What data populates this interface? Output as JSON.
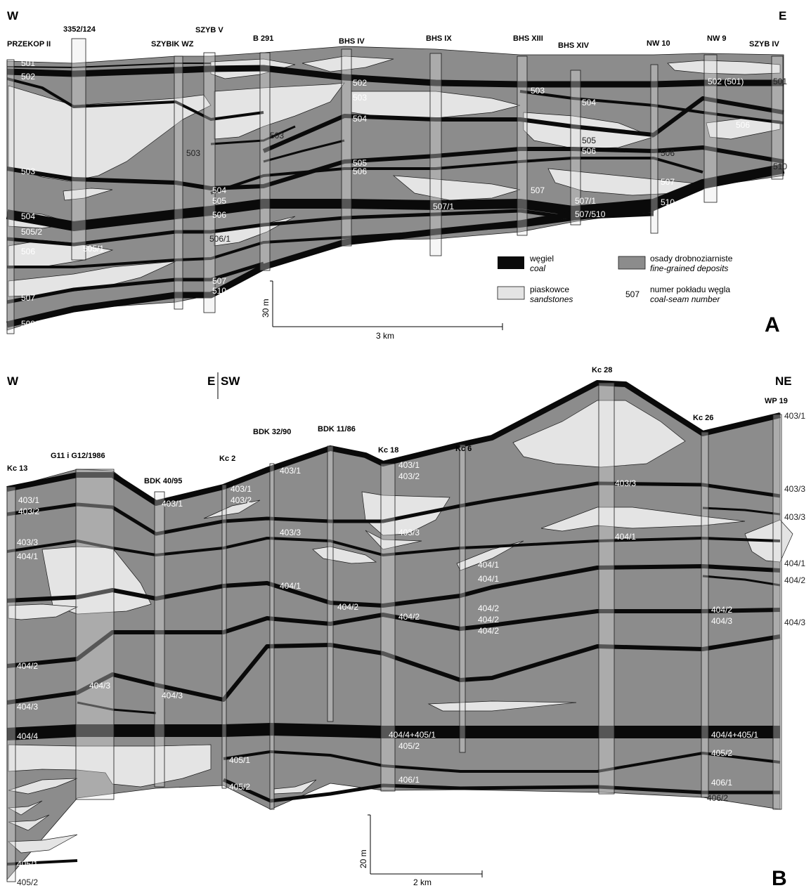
{
  "palette": {
    "coal": "#0a0a0a",
    "fine": "#8c8c8c",
    "sand": "#e4e4e4",
    "line": "#1a1a1a"
  },
  "panelA": {
    "letter": "A",
    "west": "W",
    "east": "E",
    "wells": [
      "PRZEKOP II",
      "3352/124",
      "SZYBIK WZ",
      "SZYB V",
      "B 291",
      "BHS IV",
      "BHS IX",
      "BHS XIII",
      "BHS XIV",
      "NW 10",
      "NW 9",
      "SZYB IV"
    ],
    "seam_labels": [
      "501",
      "502",
      "503",
      "504",
      "505/2",
      "506",
      "507",
      "509/510",
      "505/1",
      "503",
      "504",
      "505",
      "506",
      "506/1",
      "507",
      "510",
      "502",
      "503",
      "504",
      "505",
      "506",
      "507/1",
      "503",
      "504",
      "505",
      "506",
      "507",
      "507/1",
      "507/510",
      "506",
      "507",
      "510",
      "502 (501)",
      "506",
      "501",
      "510",
      "503"
    ],
    "legend": {
      "coal": {
        "pl": "węgiel",
        "en": "coal"
      },
      "fine": {
        "pl": "osady drobnoziarniste",
        "en": "fine-grained deposits"
      },
      "sand": {
        "pl": "piaskowce",
        "en": "sandstones"
      },
      "seam": {
        "num": "507",
        "pl": "numer pokładu węgla",
        "en": "coal-seam number"
      }
    },
    "scale_v": "30 m",
    "scale_h": "3 km"
  },
  "panelB": {
    "letter": "B",
    "west": "W",
    "break_left": "E",
    "break_right": "SW",
    "east": "NE",
    "wells": [
      "Kc 13",
      "G11 i G12/1986",
      "BDK 40/95",
      "Kc 2",
      "BDK 32/90",
      "BDK 11/86",
      "Kc 18",
      "Kc 6",
      "Kc 28",
      "Kc 26",
      "WP 19"
    ],
    "seam_labels": [
      "403/1",
      "403/2",
      "403/3",
      "404/1",
      "404/2",
      "404/3",
      "404/4",
      "405/1",
      "405/2",
      "404/3",
      "403/1",
      "404/3",
      "403/1",
      "403/2",
      "405/1",
      "405/2",
      "403/1",
      "403/3",
      "404/1",
      "404/2",
      "403/1",
      "403/2",
      "403/3",
      "404/2",
      "404/4+405/1",
      "405/2",
      "406/1",
      "404/1",
      "404/1",
      "404/2",
      "404/2",
      "404/2",
      "403/3",
      "404/1",
      "404/4+405/1",
      "404/2",
      "404/3",
      "405/2",
      "406/1",
      "406/2",
      "403/1",
      "403/3",
      "403/3",
      "404/1",
      "404/2",
      "404/3"
    ],
    "scale_v": "20 m",
    "scale_h": "2 km"
  }
}
